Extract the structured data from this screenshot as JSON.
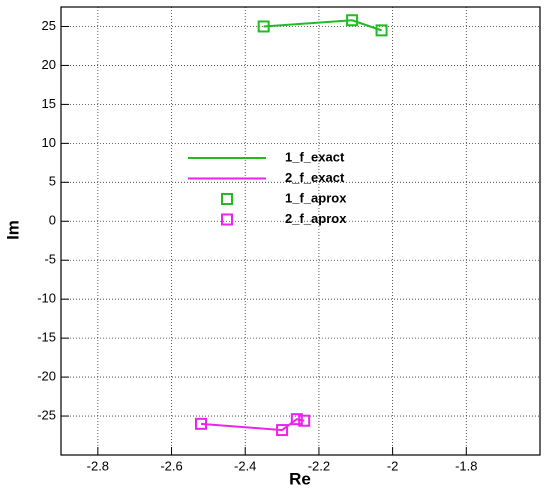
{
  "chart_data": {
    "type": "line",
    "x_label": "Re",
    "y_label": "Im",
    "xlim": [
      -2.9,
      -1.6
    ],
    "ylim": [
      -30,
      27.5
    ],
    "xticks": [
      -2.8,
      -2.6,
      -2.4,
      -2.2,
      -2,
      -1.8
    ],
    "yticks": [
      -25,
      -20,
      -15,
      -10,
      -5,
      0,
      5,
      10,
      15,
      20,
      25
    ],
    "grid": true,
    "series": [
      {
        "name": "1_f_exact",
        "color": "#22bb22",
        "mode": "line",
        "x": [
          -2.35,
          -2.11,
          -2.03
        ],
        "values": [
          25,
          25.8,
          24.5
        ]
      },
      {
        "name": "2_f_exact",
        "color": "#ee22ee",
        "mode": "line",
        "x": [
          -2.52,
          -2.3,
          -2.26,
          -2.24
        ],
        "values": [
          -26,
          -26.8,
          -25.4,
          -25.6
        ]
      },
      {
        "name": "1_f_aprox",
        "color": "#22bb22",
        "mode": "marker",
        "x": [
          -2.35,
          -2.11,
          -2.03
        ],
        "values": [
          25,
          25.8,
          24.5
        ]
      },
      {
        "name": "2_f_aprox",
        "color": "#ee22ee",
        "mode": "marker",
        "x": [
          -2.52,
          -2.3,
          -2.26,
          -2.24
        ],
        "values": [
          -26,
          -26.8,
          -25.4,
          -25.6
        ]
      }
    ]
  }
}
